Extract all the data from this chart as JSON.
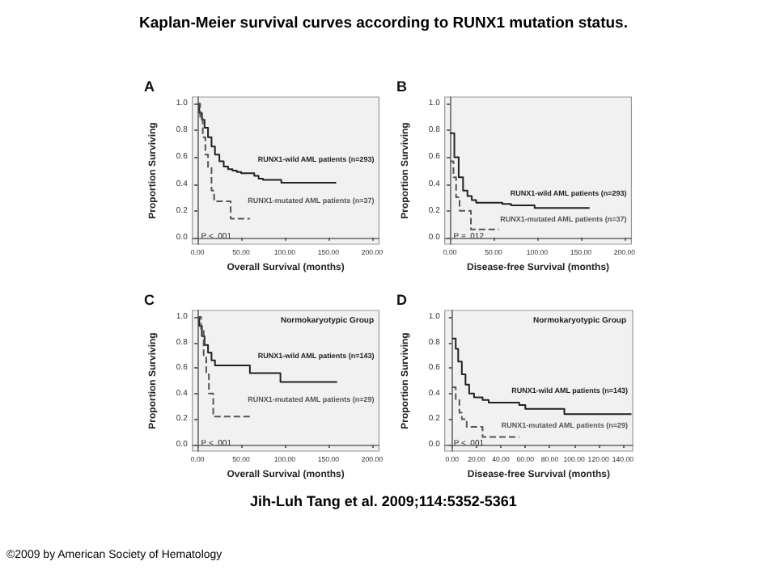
{
  "chart_data": [
    {
      "type": "other",
      "title": "Kaplan-Meier survival curves according to RUNX1 mutation status.",
      "annotations": [
        "Jih-Luh Tang et al. 2009;114:5352-5361",
        "©2009 by American Society of Hematology"
      ]
    },
    {
      "type": "step",
      "subtitle": "A",
      "xlabel": "Overall Survival (months)",
      "ylabel": "Proportion Surviving",
      "xlim": [
        -6,
        208
      ],
      "ylim": [
        -0.05,
        1.05
      ],
      "xticks": [
        {
          "value": 0,
          "label": "0.00"
        },
        {
          "value": 50,
          "label": "50.00"
        },
        {
          "value": 100,
          "label": "100.00"
        },
        {
          "value": 150,
          "label": "150.00"
        },
        {
          "value": 200,
          "label": "200.00"
        }
      ],
      "yticks": [
        {
          "value": 0,
          "label": "0.0"
        },
        {
          "value": 0.2,
          "label": "0.2"
        },
        {
          "value": 0.4,
          "label": "0.4"
        },
        {
          "value": 0.6,
          "label": "0.6"
        },
        {
          "value": 0.8,
          "label": "0.8"
        },
        {
          "value": 1,
          "label": "1.0"
        }
      ],
      "annotations": [
        "P < .001"
      ],
      "series": [
        {
          "name": "RUNX1-wild AML patients (n=293)",
          "color": "#222222",
          "line_style": "solid",
          "x": [
            0,
            2,
            5,
            8,
            12,
            16,
            20,
            25,
            30,
            35,
            40,
            45,
            50,
            60,
            65,
            70,
            75,
            96,
            159
          ],
          "values": [
            1,
            0.93,
            0.88,
            0.82,
            0.75,
            0.68,
            0.62,
            0.57,
            0.53,
            0.51,
            0.5,
            0.49,
            0.48,
            0.48,
            0.46,
            0.44,
            0.43,
            0.41,
            0.41
          ]
        },
        {
          "name": "RUNX1-mutated AML patients (n=37)",
          "color": "#555555",
          "line_style": "dashed",
          "x": [
            0,
            3,
            6,
            9,
            12,
            16,
            19,
            38,
            60
          ],
          "values": [
            1,
            0.9,
            0.75,
            0.62,
            0.52,
            0.35,
            0.27,
            0.14,
            0.14
          ]
        }
      ]
    },
    {
      "type": "step",
      "subtitle": "B",
      "xlabel": "Disease-free Survival (months)",
      "ylabel": "Proportion Surviving",
      "xlim": [
        -6,
        208
      ],
      "ylim": [
        -0.05,
        1.05
      ],
      "xticks": [
        {
          "value": 0,
          "label": "0.00"
        },
        {
          "value": 50,
          "label": "50.00"
        },
        {
          "value": 100,
          "label": "100.00"
        },
        {
          "value": 150,
          "label": "150.00"
        },
        {
          "value": 200,
          "label": "200.00"
        }
      ],
      "yticks": [
        {
          "value": 0,
          "label": "0.0"
        },
        {
          "value": 0.2,
          "label": "0.2"
        },
        {
          "value": 0.4,
          "label": "0.4"
        },
        {
          "value": 0.6,
          "label": "0.6"
        },
        {
          "value": 0.8,
          "label": "0.8"
        },
        {
          "value": 1,
          "label": "1.0"
        }
      ],
      "annotations": [
        "P = .012"
      ],
      "series": [
        {
          "name": "RUNX1-wild AML patients (n=293)",
          "color": "#222222",
          "line_style": "solid",
          "x": [
            0,
            5,
            10,
            15,
            20,
            25,
            30,
            50,
            60,
            70,
            95,
            97,
            160
          ],
          "values": [
            0.78,
            0.6,
            0.45,
            0.35,
            0.31,
            0.28,
            0.26,
            0.26,
            0.25,
            0.24,
            0.24,
            0.22,
            0.22
          ]
        },
        {
          "name": "RUNX1-mutated AML patients (n=37)",
          "color": "#555555",
          "line_style": "dashed",
          "x": [
            0,
            4,
            7,
            11,
            22,
            24,
            56
          ],
          "values": [
            0.57,
            0.45,
            0.3,
            0.2,
            0.2,
            0.06,
            0.06
          ]
        }
      ]
    },
    {
      "type": "step",
      "subtitle": "C",
      "xlabel": "Overall Survival (months)",
      "ylabel": "Proportion Surviving",
      "xlim": [
        -6,
        208
      ],
      "ylim": [
        -0.05,
        1.05
      ],
      "xticks": [
        {
          "value": 0,
          "label": "0.00"
        },
        {
          "value": 50,
          "label": "50.00"
        },
        {
          "value": 100,
          "label": "100.00"
        },
        {
          "value": 150,
          "label": "150.00"
        },
        {
          "value": 200,
          "label": "200.00"
        }
      ],
      "yticks": [
        {
          "value": 0,
          "label": "0.0"
        },
        {
          "value": 0.2,
          "label": "0.2"
        },
        {
          "value": 0.4,
          "label": "0.4"
        },
        {
          "value": 0.6,
          "label": "0.6"
        },
        {
          "value": 0.8,
          "label": "0.8"
        },
        {
          "value": 1,
          "label": "1.0"
        }
      ],
      "annotations": [
        "Normokaryotypic Group",
        "P < .001"
      ],
      "series": [
        {
          "name": "RUNX1-wild AML patients (n=143)",
          "color": "#222222",
          "line_style": "solid",
          "x": [
            0,
            2,
            5,
            8,
            12,
            16,
            20,
            55,
            60,
            93,
            95,
            160
          ],
          "values": [
            1,
            0.93,
            0.85,
            0.78,
            0.72,
            0.66,
            0.62,
            0.62,
            0.56,
            0.56,
            0.49,
            0.49
          ]
        },
        {
          "name": "RUNX1-mutated AML patients (n=29)",
          "color": "#555555",
          "line_style": "dashed",
          "x": [
            0,
            4,
            7,
            10,
            13,
            18,
            60
          ],
          "values": [
            1,
            0.9,
            0.7,
            0.55,
            0.4,
            0.22,
            0.22
          ]
        }
      ]
    },
    {
      "type": "step",
      "subtitle": "D",
      "xlabel": "Disease-free Survival (months)",
      "ylabel": "Proportion Surviving",
      "xlim": [
        -6,
        148
      ],
      "ylim": [
        -0.05,
        1.05
      ],
      "xticks": [
        {
          "value": 0,
          "label": "0.00"
        },
        {
          "value": 20,
          "label": "20.00"
        },
        {
          "value": 40,
          "label": "40.00"
        },
        {
          "value": 60,
          "label": "60.00"
        },
        {
          "value": 80,
          "label": "80.00"
        },
        {
          "value": 100,
          "label": "100.00"
        },
        {
          "value": 120,
          "label": "120.00"
        },
        {
          "value": 140,
          "label": "140.00"
        }
      ],
      "yticks": [
        {
          "value": 0,
          "label": "0.0"
        },
        {
          "value": 0.2,
          "label": "0.2"
        },
        {
          "value": 0.4,
          "label": "0.4"
        },
        {
          "value": 0.6,
          "label": "0.6"
        },
        {
          "value": 0.8,
          "label": "0.8"
        },
        {
          "value": 1,
          "label": "1.0"
        }
      ],
      "annotations": [
        "Normokaryotypic Group",
        "P < .001"
      ],
      "series": [
        {
          "name": "RUNX1-wild AML patients (n=143)",
          "color": "#222222",
          "line_style": "solid",
          "x": [
            0,
            3,
            5,
            8,
            11,
            14,
            18,
            25,
            30,
            50,
            55,
            60,
            90,
            92,
            147
          ],
          "values": [
            0.83,
            0.75,
            0.65,
            0.55,
            0.47,
            0.4,
            0.37,
            0.35,
            0.33,
            0.33,
            0.31,
            0.28,
            0.28,
            0.24,
            0.24
          ]
        },
        {
          "name": "RUNX1-mutated AML patients (n=29)",
          "color": "#555555",
          "line_style": "dashed",
          "x": [
            0,
            3,
            6,
            8,
            12,
            20,
            25,
            55
          ],
          "values": [
            0.45,
            0.35,
            0.25,
            0.2,
            0.14,
            0.14,
            0.06,
            0.06
          ]
        }
      ]
    }
  ]
}
